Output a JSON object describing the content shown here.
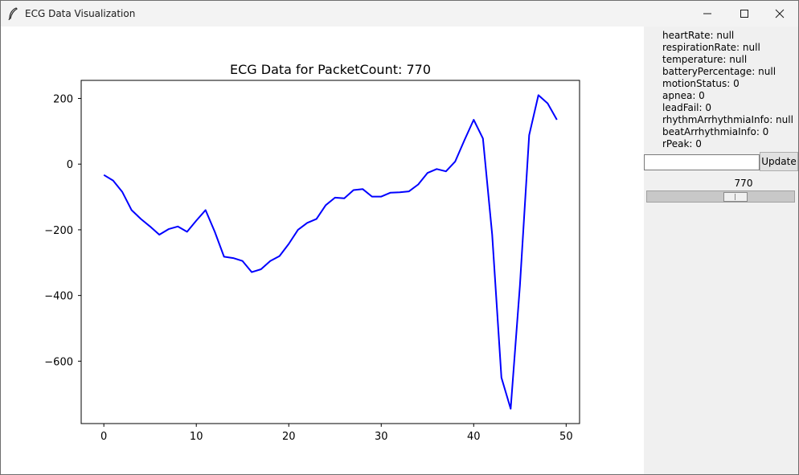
{
  "window": {
    "title": "ECG Data Visualization",
    "controls": [
      "minimize-icon",
      "maximize-icon",
      "close-icon"
    ]
  },
  "info": [
    "heartRate: null",
    "respirationRate: null",
    "temperature: null",
    "batteryPercentage: null",
    "motionStatus: 0",
    "apnea: 0",
    "leadFail: 0",
    "rhythmArrhythmiaInfo: null",
    "beatArrhythmiaInfo: 0",
    "rPeak: 0"
  ],
  "controls": {
    "input_value": "",
    "update_label": "Update",
    "slider_value": "770",
    "slider_fraction": 0.62
  },
  "chart_data": {
    "type": "line",
    "title": "ECG Data for PacketCount: 770",
    "xlabel": "",
    "ylabel": "",
    "xlim": [
      -2.45,
      51.45
    ],
    "ylim": [
      -790,
      255
    ],
    "xticks": [
      0,
      10,
      20,
      30,
      40,
      50
    ],
    "xtick_labels": [
      "0",
      "10",
      "20",
      "30",
      "40",
      "50"
    ],
    "yticks": [
      200,
      0,
      -200,
      -400,
      -600
    ],
    "ytick_labels": [
      "200",
      "0",
      "−200",
      "−400",
      "−600"
    ],
    "grid": false,
    "color": "#0000ff",
    "x": [
      0,
      1,
      2,
      3,
      4,
      5,
      6,
      7,
      8,
      9,
      10,
      11,
      12,
      13,
      14,
      15,
      16,
      17,
      18,
      19,
      20,
      21,
      22,
      23,
      24,
      25,
      26,
      27,
      28,
      29,
      30,
      31,
      32,
      33,
      34,
      35,
      36,
      37,
      38,
      39,
      40,
      41,
      42,
      43,
      44,
      45,
      46,
      47,
      48,
      49
    ],
    "y": [
      -33,
      -50,
      -85,
      -140,
      -167,
      -190,
      -215,
      -198,
      -190,
      -206,
      -172,
      -140,
      -206,
      -282,
      -286,
      -295,
      -329,
      -320,
      -295,
      -280,
      -243,
      -200,
      -179,
      -167,
      -125,
      -102,
      -104,
      -79,
      -76,
      -99,
      -99,
      -87,
      -86,
      -83,
      -62,
      -27,
      -15,
      -22,
      8,
      73,
      135,
      78,
      -215,
      -650,
      -745,
      -370,
      88,
      210,
      185,
      135
    ]
  }
}
